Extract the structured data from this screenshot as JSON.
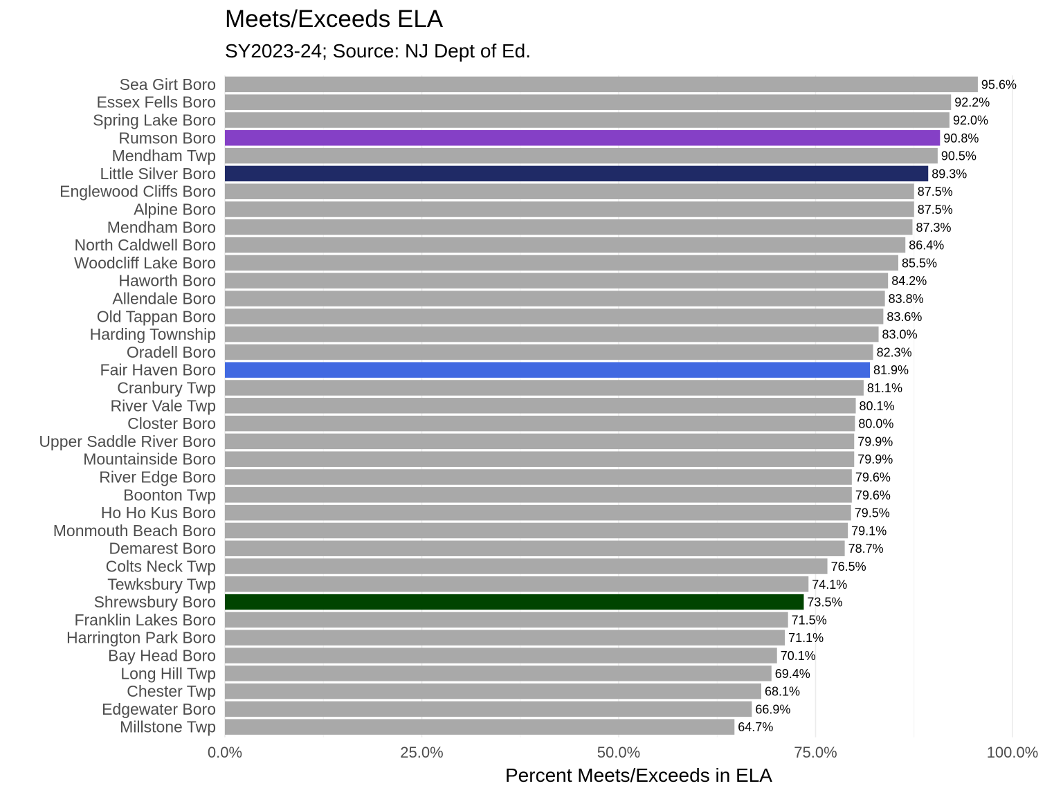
{
  "chart_data": {
    "type": "bar",
    "orientation": "horizontal",
    "title": "Meets/Exceeds ELA",
    "subtitle": "SY2023-24; Source: NJ Dept of Ed.",
    "xlabel": "Percent Meets/Exceeds in ELA",
    "ylabel": "",
    "xlim": [
      0,
      100
    ],
    "x_ticks": [
      0,
      25,
      50,
      75,
      100
    ],
    "x_tick_labels": [
      "0.0%",
      "25.0%",
      "50.0%",
      "75.0%",
      "100.0%"
    ],
    "grid": true,
    "legend": "none",
    "default_color": "#a9a9a9",
    "categories": [
      "Sea Girt Boro",
      "Essex Fells Boro",
      "Spring Lake Boro",
      "Rumson Boro",
      "Mendham Twp",
      "Little Silver Boro",
      "Englewood Cliffs Boro",
      "Alpine Boro",
      "Mendham Boro",
      "North Caldwell Boro",
      "Woodcliff Lake Boro",
      "Haworth Boro",
      "Allendale Boro",
      "Old Tappan Boro",
      "Harding Township",
      "Oradell Boro",
      "Fair Haven Boro",
      "Cranbury Twp",
      "River Vale Twp",
      "Closter Boro",
      "Upper Saddle River Boro",
      "Mountainside Boro",
      "River Edge Boro",
      "Boonton Twp",
      "Ho Ho Kus Boro",
      "Monmouth Beach Boro",
      "Demarest Boro",
      "Colts Neck Twp",
      "Tewksbury Twp",
      "Shrewsbury Boro",
      "Franklin Lakes Boro",
      "Harrington Park Boro",
      "Bay Head Boro",
      "Long Hill Twp",
      "Chester Twp",
      "Edgewater Boro",
      "Millstone Twp"
    ],
    "values": [
      95.6,
      92.2,
      92.0,
      90.8,
      90.5,
      89.3,
      87.5,
      87.5,
      87.3,
      86.4,
      85.5,
      84.2,
      83.8,
      83.6,
      83.0,
      82.3,
      81.9,
      81.1,
      80.1,
      80.0,
      79.9,
      79.9,
      79.6,
      79.6,
      79.5,
      79.1,
      78.7,
      76.5,
      74.1,
      73.5,
      71.5,
      71.1,
      70.1,
      69.4,
      68.1,
      66.9,
      64.7
    ],
    "value_labels": [
      "95.6%",
      "92.2%",
      "92.0%",
      "90.8%",
      "90.5%",
      "89.3%",
      "87.5%",
      "87.5%",
      "87.3%",
      "86.4%",
      "85.5%",
      "84.2%",
      "83.8%",
      "83.6%",
      "83.0%",
      "82.3%",
      "81.9%",
      "81.1%",
      "80.1%",
      "80.0%",
      "79.9%",
      "79.9%",
      "79.6%",
      "79.6%",
      "79.5%",
      "79.1%",
      "78.7%",
      "76.5%",
      "74.1%",
      "73.5%",
      "71.5%",
      "71.1%",
      "70.1%",
      "69.4%",
      "68.1%",
      "66.9%",
      "64.7%"
    ],
    "highlights": {
      "Rumson Boro": "#8540c6",
      "Little Silver Boro": "#1f2a66",
      "Fair Haven Boro": "#4169e1",
      "Shrewsbury Boro": "#004400"
    }
  }
}
